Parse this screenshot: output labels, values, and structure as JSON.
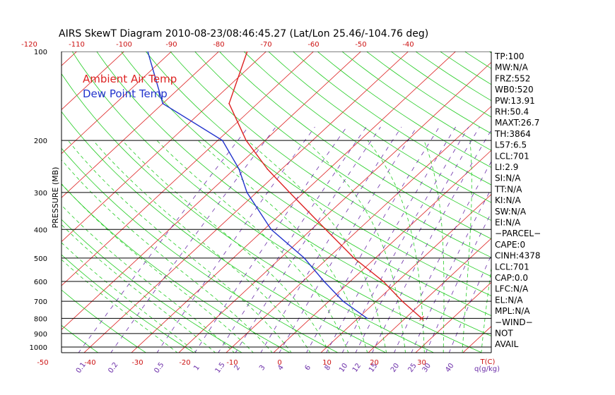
{
  "chart_data": {
    "type": "line",
    "title": "AIRS SkewT Diagram 2010-08-23/08:46:45.27 (Lat/Lon 25.46/-104.76 deg)",
    "ylabel": "PRESSURE (MB)",
    "xlabel": "T(C)",
    "mixing_ratio_unit": "q(g/kg)",
    "y_scale": "log",
    "ylim": [
      1000,
      100
    ],
    "xlim_bottom": [
      -55,
      40
    ],
    "top_temp_ticks": [
      -120,
      -110,
      -100,
      -90,
      -80,
      -70,
      -60,
      -50,
      -40
    ],
    "bottom_temp_ticks": [
      -50,
      -40,
      -30,
      -20,
      -10,
      0,
      10,
      20,
      30
    ],
    "pressure_ticks": [
      100,
      200,
      300,
      400,
      500,
      600,
      700,
      800,
      900,
      1000
    ],
    "mixing_ratio_ticks": [
      "0.1",
      "0.2",
      "0.5",
      "1",
      "1.5",
      "2",
      "3",
      "4",
      "6",
      "8",
      "10",
      "12",
      "15",
      "20",
      "25",
      "30",
      "40"
    ],
    "legend": [
      {
        "name": "Ambient Air Temp",
        "color": "#dd2222"
      },
      {
        "name": "Dew Point Temp",
        "color": "#2233cc"
      }
    ],
    "series": [
      {
        "name": "Ambient Air Temp",
        "color": "#dd2222",
        "points": [
          {
            "p": 800,
            "t": 23.5
          },
          {
            "p": 700,
            "t": 15.5
          },
          {
            "p": 600,
            "t": 7.0
          },
          {
            "p": 500,
            "t": -4.5
          },
          {
            "p": 400,
            "t": -17.0
          },
          {
            "p": 300,
            "t": -33.0
          },
          {
            "p": 250,
            "t": -43.0
          },
          {
            "p": 200,
            "t": -54.0
          },
          {
            "p": 150,
            "t": -66.0
          },
          {
            "p": 100,
            "t": -74.0
          }
        ]
      },
      {
        "name": "Dew Point Temp",
        "color": "#2233cc",
        "points": [
          {
            "p": 800,
            "t": 12.0
          },
          {
            "p": 700,
            "t": 3.0
          },
          {
            "p": 600,
            "t": -5.5
          },
          {
            "p": 500,
            "t": -15.0
          },
          {
            "p": 400,
            "t": -28.5
          },
          {
            "p": 300,
            "t": -42.0
          },
          {
            "p": 250,
            "t": -49.0
          },
          {
            "p": 200,
            "t": -59.0
          },
          {
            "p": 150,
            "t": -80.0
          },
          {
            "p": 100,
            "t": -95.0
          }
        ]
      }
    ],
    "grid_colors": {
      "isobar": "#000000",
      "isotherm": "#dd2222",
      "dry_adiabat": "#22cc22",
      "moist_adiabat": "#22cc22",
      "mixing_ratio": "#6a2ca8"
    },
    "indices": [
      "TP:100",
      "MW:N/A",
      "FRZ:552",
      "WB0:520",
      "PW:13.91",
      "RH:50.4",
      "MAXT:26.7",
      "TH:3864",
      "L57:6.5",
      "LCL:701",
      "LI:2.9",
      "SI:N/A",
      "TT:N/A",
      "KI:N/A",
      "SW:N/A",
      "EI:N/A",
      "−PARCEL−",
      "CAPE:0",
      "CINH:4378",
      "LCL:701",
      "CAP:0.0",
      "LFC:N/A",
      "EL:N/A",
      "MPL:N/A",
      "−WIND−",
      " NOT",
      " AVAIL"
    ]
  }
}
